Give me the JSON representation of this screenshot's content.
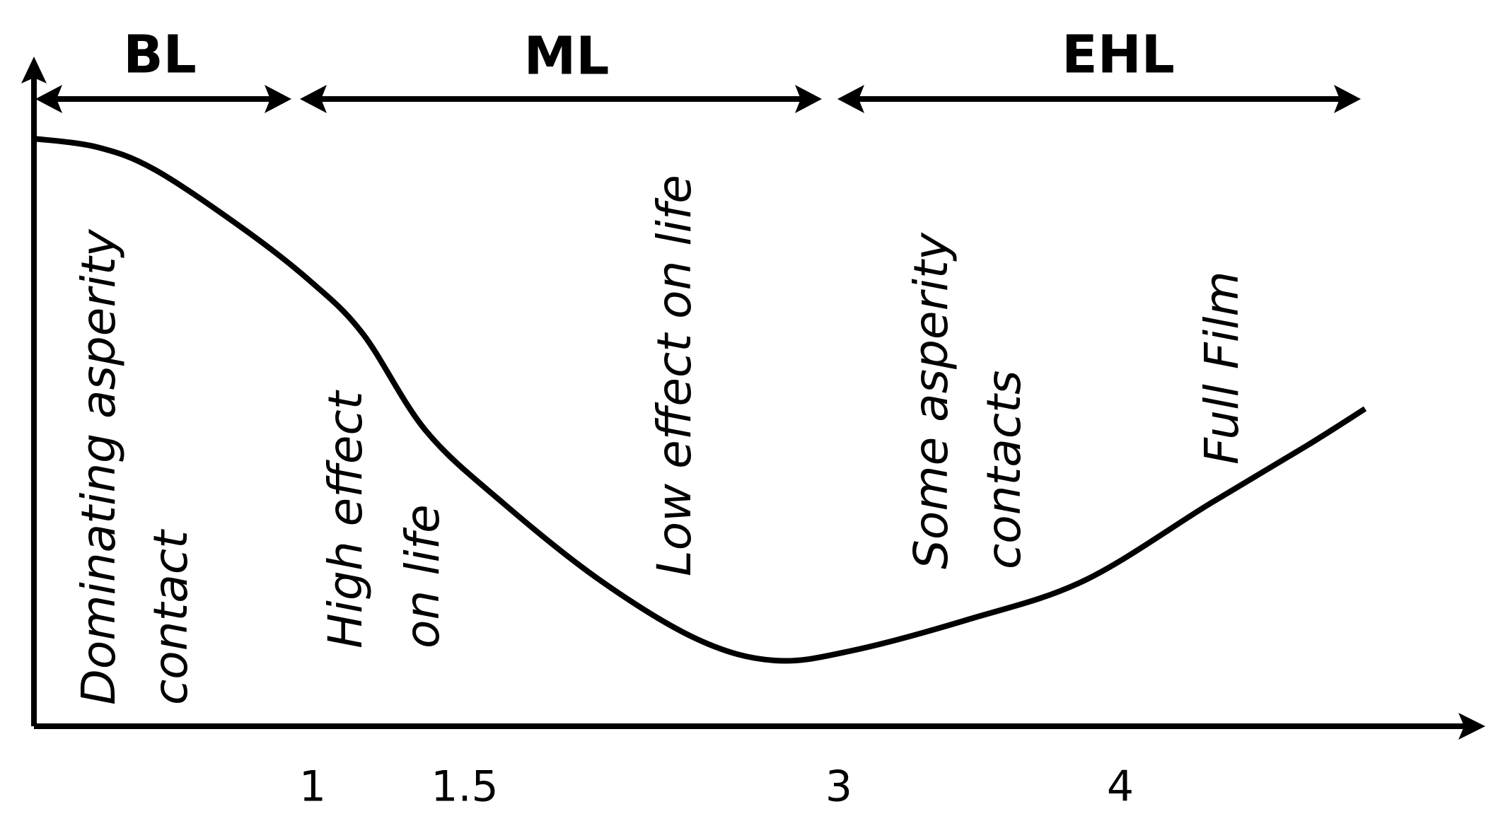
{
  "regions": [
    {
      "label": "BL"
    },
    {
      "label": "ML"
    },
    {
      "label": "EHL"
    }
  ],
  "annotations": [
    {
      "lines": [
        "Dominating asperity",
        "contact"
      ]
    },
    {
      "lines": [
        "High effect",
        "on life"
      ]
    },
    {
      "lines": [
        "Low effect on life"
      ]
    },
    {
      "lines": [
        "Some asperity",
        "contacts"
      ]
    },
    {
      "lines": [
        "Full Film"
      ]
    }
  ],
  "axis": {
    "ticks": [
      "1",
      "1.5",
      "3",
      "4"
    ]
  }
}
